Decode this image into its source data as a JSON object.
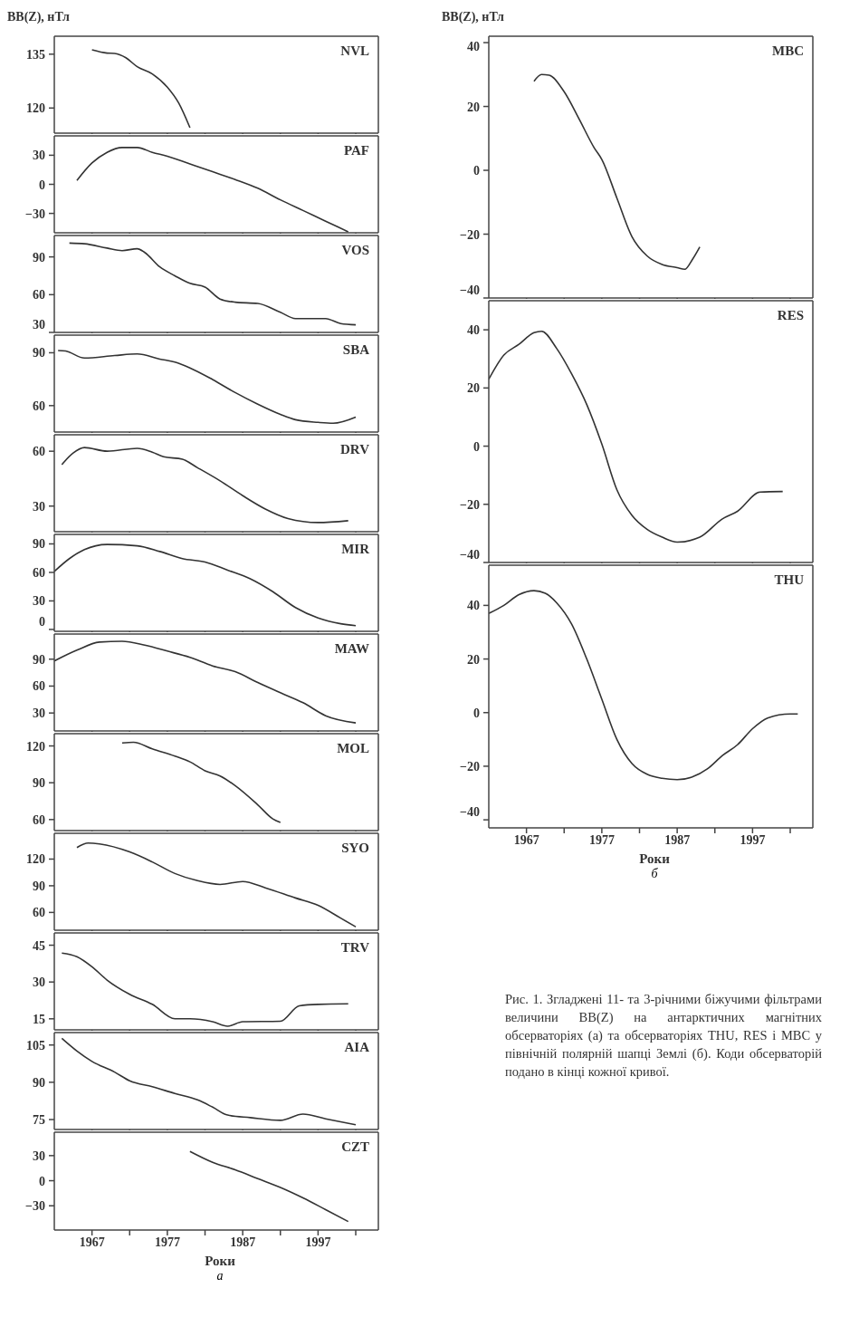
{
  "chart_data": [
    {
      "type": "line",
      "ylabel": "ВВ(Z), нТл",
      "xlim": [
        1962,
        2005
      ],
      "xticks": [
        {
          "value": 1967,
          "label": null
        },
        {
          "value": 1972,
          "label": null
        },
        {
          "value": 1977,
          "label": null
        },
        {
          "value": 1982,
          "label": null
        },
        {
          "value": 1987,
          "label": null
        },
        {
          "value": 1992,
          "label": null
        },
        {
          "value": 1997,
          "label": null
        },
        {
          "value": 2002,
          "label": null
        }
      ],
      "ylim": [
        113,
        140
      ],
      "yticks": [
        120,
        135
      ],
      "tick_labels": "y",
      "series": [
        {
          "name": "NVL",
          "color": "#333333",
          "x": [
            1967,
            1969,
            1970,
            1971.5,
            1973,
            1975,
            1977,
            1978.5,
            1980
          ],
          "values": [
            136.2,
            135.3,
            135.2,
            134,
            131.5,
            129.5,
            125.8,
            121.4,
            114.5
          ]
        }
      ]
    },
    {
      "type": "line",
      "xlim": [
        1962,
        2005
      ],
      "xticks": [
        {
          "value": 1967,
          "label": null
        },
        {
          "value": 1972,
          "label": null
        },
        {
          "value": 1977,
          "label": null
        },
        {
          "value": 1982,
          "label": null
        },
        {
          "value": 1987,
          "label": null
        },
        {
          "value": 1992,
          "label": null
        },
        {
          "value": 1997,
          "label": null
        },
        {
          "value": 2002,
          "label": null
        }
      ],
      "ylim": [
        -50,
        50
      ],
      "yticks": [
        -30,
        0,
        30
      ],
      "tick_labels": "y",
      "series": [
        {
          "name": "PAF",
          "color": "#333333",
          "x": [
            1965,
            1967,
            1969,
            1971,
            1973,
            1975,
            1977,
            1980,
            1983,
            1986,
            1989,
            1992,
            1995,
            1998,
            2001
          ],
          "values": [
            4,
            22,
            33,
            38,
            38,
            33,
            29,
            21,
            13,
            5,
            -4,
            -16,
            -27,
            -38,
            -49
          ]
        }
      ]
    },
    {
      "type": "line",
      "xlim": [
        1962,
        2005
      ],
      "xticks": [
        {
          "value": 1967,
          "label": null
        },
        {
          "value": 1972,
          "label": null
        },
        {
          "value": 1977,
          "label": null
        },
        {
          "value": 1982,
          "label": null
        },
        {
          "value": 1987,
          "label": null
        },
        {
          "value": 1992,
          "label": null
        },
        {
          "value": 1997,
          "label": null
        },
        {
          "value": 2002,
          "label": null
        }
      ],
      "ylim": [
        30,
        107
      ],
      "yticks": [
        30,
        60,
        90
      ],
      "tick_labels": "y",
      "series": [
        {
          "name": "VOS",
          "color": "#333333",
          "x": [
            1964,
            1966,
            1969,
            1971,
            1973,
            1974,
            1976,
            1978,
            1980,
            1982,
            1984,
            1986,
            1989,
            1992,
            1994,
            1998,
            2000,
            2002
          ],
          "values": [
            101,
            100.4,
            97,
            95,
            96.5,
            93.5,
            82,
            75,
            69,
            66,
            56.5,
            54,
            53,
            46,
            41,
            41,
            37,
            36
          ]
        }
      ]
    },
    {
      "type": "line",
      "xlim": [
        1962,
        2005
      ],
      "xticks": [
        {
          "value": 1967,
          "label": null
        },
        {
          "value": 1972,
          "label": null
        },
        {
          "value": 1977,
          "label": null
        },
        {
          "value": 1982,
          "label": null
        },
        {
          "value": 1987,
          "label": null
        },
        {
          "value": 1992,
          "label": null
        },
        {
          "value": 1997,
          "label": null
        },
        {
          "value": 2002,
          "label": null
        }
      ],
      "ylim": [
        45,
        100
      ],
      "yticks": [
        60,
        90
      ],
      "tick_labels": "y",
      "series": [
        {
          "name": "SBA",
          "color": "#333333",
          "x": [
            1962.5,
            1963.5,
            1966,
            1970,
            1973,
            1976,
            1978,
            1980,
            1983,
            1986,
            1989,
            1992,
            1994,
            1997,
            1999,
            2002
          ],
          "values": [
            91.3,
            91,
            87,
            88.4,
            89.3,
            86.4,
            84.7,
            81.4,
            74.8,
            67.4,
            60.8,
            55,
            52,
            50.5,
            50,
            53.5
          ]
        }
      ]
    },
    {
      "type": "line",
      "xlim": [
        1962,
        2005
      ],
      "xticks": [
        {
          "value": 1967,
          "label": null
        },
        {
          "value": 1972,
          "label": null
        },
        {
          "value": 1977,
          "label": null
        },
        {
          "value": 1982,
          "label": null
        },
        {
          "value": 1987,
          "label": null
        },
        {
          "value": 1992,
          "label": null
        },
        {
          "value": 1997,
          "label": null
        },
        {
          "value": 2002,
          "label": null
        }
      ],
      "ylim": [
        16,
        69
      ],
      "yticks": [
        30,
        60
      ],
      "tick_labels": "y",
      "series": [
        {
          "name": "DRV",
          "color": "#333333",
          "x": [
            1963,
            1964.5,
            1966,
            1969,
            1973,
            1975,
            1976.5,
            1979,
            1981,
            1984,
            1987,
            1990,
            1993,
            1997,
            2001
          ],
          "values": [
            52.7,
            59,
            62,
            60,
            61.6,
            59.5,
            57,
            55.6,
            51,
            43.8,
            35.7,
            28.4,
            23.2,
            21,
            22
          ]
        }
      ]
    },
    {
      "type": "line",
      "xlim": [
        1962,
        2005
      ],
      "xticks": [
        {
          "value": 1967,
          "label": null
        },
        {
          "value": 1972,
          "label": null
        },
        {
          "value": 1977,
          "label": null
        },
        {
          "value": 1982,
          "label": null
        },
        {
          "value": 1987,
          "label": null
        },
        {
          "value": 1992,
          "label": null
        },
        {
          "value": 1997,
          "label": null
        },
        {
          "value": 2002,
          "label": null
        }
      ],
      "ylim": [
        -2,
        100
      ],
      "yticks": [
        0,
        30,
        60,
        90
      ],
      "tick_labels": "y",
      "series": [
        {
          "name": "MIR",
          "color": "#333333",
          "x": [
            1962,
            1964,
            1966,
            1969,
            1973,
            1976,
            1979,
            1982,
            1985,
            1988,
            1991,
            1994,
            1997,
            2000,
            2002
          ],
          "values": [
            61,
            74.5,
            84,
            89.4,
            88,
            82,
            74.5,
            71,
            62.4,
            53.3,
            39.7,
            23,
            12,
            6,
            4
          ]
        }
      ]
    },
    {
      "type": "line",
      "xlim": [
        1962,
        2005
      ],
      "xticks": [
        {
          "value": 1967,
          "label": null
        },
        {
          "value": 1972,
          "label": null
        },
        {
          "value": 1977,
          "label": null
        },
        {
          "value": 1982,
          "label": null
        },
        {
          "value": 1987,
          "label": null
        },
        {
          "value": 1992,
          "label": null
        },
        {
          "value": 1997,
          "label": null
        },
        {
          "value": 2002,
          "label": null
        }
      ],
      "ylim": [
        10,
        118
      ],
      "yticks": [
        30,
        60,
        90
      ],
      "tick_labels": "y",
      "series": [
        {
          "name": "MAW",
          "color": "#333333",
          "x": [
            1962,
            1965,
            1968,
            1971,
            1974,
            1977,
            1980,
            1983,
            1986,
            1989,
            1992,
            1995,
            1998,
            2002
          ],
          "values": [
            88,
            100,
            109,
            110,
            105.6,
            99,
            92,
            82.5,
            76,
            64,
            52.6,
            41.5,
            27,
            19
          ]
        }
      ]
    },
    {
      "type": "line",
      "xlim": [
        1962,
        2005
      ],
      "xticks": [
        {
          "value": 1967,
          "label": null
        },
        {
          "value": 1972,
          "label": null
        },
        {
          "value": 1977,
          "label": null
        },
        {
          "value": 1982,
          "label": null
        },
        {
          "value": 1987,
          "label": null
        },
        {
          "value": 1992,
          "label": null
        },
        {
          "value": 1997,
          "label": null
        },
        {
          "value": 2002,
          "label": null
        }
      ],
      "ylim": [
        51,
        130
      ],
      "yticks": [
        60,
        90,
        120
      ],
      "tick_labels": "y",
      "series": [
        {
          "name": "MOL",
          "color": "#333333",
          "x": [
            1971,
            1972.5,
            1975,
            1978,
            1980,
            1982,
            1984,
            1986,
            1989,
            1991,
            1992
          ],
          "values": [
            122.4,
            123,
            117.6,
            111.7,
            107,
            99.8,
            95.5,
            87.6,
            72,
            60.5,
            57.6
          ]
        }
      ]
    },
    {
      "type": "line",
      "xlim": [
        1962,
        2005
      ],
      "xticks": [
        {
          "value": 1967,
          "label": null
        },
        {
          "value": 1972,
          "label": null
        },
        {
          "value": 1977,
          "label": null
        },
        {
          "value": 1982,
          "label": null
        },
        {
          "value": 1987,
          "label": null
        },
        {
          "value": 1992,
          "label": null
        },
        {
          "value": 1997,
          "label": null
        },
        {
          "value": 2002,
          "label": null
        }
      ],
      "ylim": [
        40,
        149
      ],
      "yticks": [
        60,
        90,
        120
      ],
      "tick_labels": "y",
      "series": [
        {
          "name": "SYO",
          "color": "#333333",
          "x": [
            1965,
            1966.5,
            1968,
            1972,
            1975,
            1978,
            1981,
            1984,
            1987,
            1990,
            1994,
            1997,
            2000,
            2002
          ],
          "values": [
            133,
            138,
            137,
            128,
            116.8,
            103.8,
            95.7,
            91.5,
            94.8,
            87.7,
            76.3,
            68,
            53.6,
            43.8
          ]
        }
      ]
    },
    {
      "type": "line",
      "xlim": [
        1962,
        2005
      ],
      "xticks": [
        {
          "value": 1967,
          "label": null
        },
        {
          "value": 1972,
          "label": null
        },
        {
          "value": 1977,
          "label": null
        },
        {
          "value": 1982,
          "label": null
        },
        {
          "value": 1987,
          "label": null
        },
        {
          "value": 1992,
          "label": null
        },
        {
          "value": 1997,
          "label": null
        },
        {
          "value": 2002,
          "label": null
        }
      ],
      "ylim": [
        10.5,
        50
      ],
      "yticks": [
        15,
        30,
        45
      ],
      "tick_labels": "y",
      "series": [
        {
          "name": "TRV",
          "color": "#333333",
          "x": [
            1963,
            1965,
            1967,
            1969,
            1972,
            1975,
            1978,
            1980,
            1983,
            1985,
            1987,
            1992,
            1994.5,
            1997,
            2001
          ],
          "values": [
            41.8,
            40.3,
            36.2,
            30.8,
            25,
            20.9,
            15,
            15,
            13.8,
            12,
            13.8,
            14,
            20.3,
            20.9,
            21.1
          ]
        }
      ]
    },
    {
      "type": "line",
      "xlim": [
        1962,
        2005
      ],
      "xticks": [
        {
          "value": 1967,
          "label": null
        },
        {
          "value": 1972,
          "label": null
        },
        {
          "value": 1977,
          "label": null
        },
        {
          "value": 1982,
          "label": null
        },
        {
          "value": 1987,
          "label": null
        },
        {
          "value": 1992,
          "label": null
        },
        {
          "value": 1997,
          "label": null
        },
        {
          "value": 2002,
          "label": null
        }
      ],
      "ylim": [
        71,
        110
      ],
      "yticks": [
        75,
        90,
        105
      ],
      "tick_labels": "y",
      "series": [
        {
          "name": "AIA",
          "color": "#333333",
          "x": [
            1963,
            1965,
            1967,
            1970,
            1972,
            1975,
            1978,
            1981,
            1983,
            1985,
            1988,
            1992,
            1995,
            1998,
            2002
          ],
          "values": [
            107.7,
            102.6,
            98.4,
            94.1,
            90.6,
            88.2,
            85.5,
            82.9,
            80,
            76.8,
            75.8,
            74.7,
            77.2,
            75.3,
            72.9
          ]
        }
      ]
    },
    {
      "type": "line",
      "xlabel": "Роки",
      "annotations": [
        "а"
      ],
      "xlim": [
        1962,
        2005
      ],
      "xticks": [
        1967,
        {
          "value": 1972,
          "label": null
        },
        1977,
        {
          "value": 1982,
          "label": null
        },
        1987,
        {
          "value": 1992,
          "label": null
        },
        1997,
        {
          "value": 2002,
          "label": null
        }
      ],
      "ylim": [
        -59,
        58
      ],
      "yticks": [
        -30,
        0,
        30
      ],
      "series": [
        {
          "name": "CZT",
          "color": "#333333",
          "x": [
            1980,
            1983,
            1986,
            1989,
            1992,
            1995,
            1998,
            2001
          ],
          "values": [
            35,
            22,
            13,
            2.5,
            -8,
            -20.5,
            -34.6,
            -48.8
          ]
        }
      ]
    },
    {
      "type": "line",
      "ylabel": "ВВ(Z), нТл",
      "xlim": [
        1962,
        2005
      ],
      "xticks": [
        {
          "value": 1967,
          "label": null
        },
        {
          "value": 1972,
          "label": null
        },
        {
          "value": 1977,
          "label": null
        },
        {
          "value": 1982,
          "label": null
        },
        {
          "value": 1987,
          "label": null
        },
        {
          "value": 1992,
          "label": null
        },
        {
          "value": 1997,
          "label": null
        },
        {
          "value": 2002,
          "label": null
        }
      ],
      "ylim": [
        -40,
        42
      ],
      "yticks": [
        -40,
        -20,
        0,
        20,
        40
      ],
      "tick_labels": "y",
      "series": [
        {
          "name": "MBC",
          "color": "#333333",
          "x": [
            1968,
            1969,
            1970,
            1972,
            1974,
            1976,
            1977,
            1979,
            1981,
            1983,
            1985,
            1987,
            1988,
            1989,
            1990
          ],
          "values": [
            27.9,
            30,
            29.8,
            24.6,
            16,
            7,
            3.4,
            -8.7,
            -20.8,
            -26.8,
            -29.5,
            -30.5,
            -31,
            -28,
            -24
          ]
        }
      ]
    },
    {
      "type": "line",
      "xlim": [
        1962,
        2005
      ],
      "xticks": [
        {
          "value": 1967,
          "label": null
        },
        {
          "value": 1972,
          "label": null
        },
        {
          "value": 1977,
          "label": null
        },
        {
          "value": 1982,
          "label": null
        },
        {
          "value": 1987,
          "label": null
        },
        {
          "value": 1992,
          "label": null
        },
        {
          "value": 1997,
          "label": null
        },
        {
          "value": 2002,
          "label": null
        }
      ],
      "ylim": [
        -40,
        50
      ],
      "yticks": [
        -40,
        -20,
        0,
        20,
        40
      ],
      "tick_labels": "y",
      "series": [
        {
          "name": "RES",
          "color": "#333333",
          "x": [
            1962,
            1964,
            1966,
            1968,
            1969,
            1971,
            1973,
            1975,
            1977,
            1979,
            1981,
            1983,
            1985,
            1987,
            1990,
            1993,
            1995,
            1998,
            2001
          ],
          "values": [
            23,
            31.3,
            35,
            39,
            39.5,
            33.6,
            24.8,
            14.3,
            0.7,
            -15,
            -23.8,
            -28.6,
            -31.3,
            -33,
            -31.3,
            -25,
            -22.4,
            -15.8,
            -15.6
          ]
        }
      ]
    },
    {
      "type": "line",
      "xlabel": "Роки",
      "annotations": [
        "б",
        "Рис. 1. Згладжені 11- та 3-річними біжучими фільтрами величини ВВ(Z) на антарктичних магнітних обсерваторіях (а) та обсерваторіях THU, RES і MBC у північній полярній шапці Землі (б). Коди обсерваторій подано в кінці кожної кривої."
      ],
      "xlim": [
        1962,
        2005
      ],
      "xticks": [
        1967,
        {
          "value": 1972,
          "label": null
        },
        1977,
        {
          "value": 1982,
          "label": null
        },
        1987,
        {
          "value": 1992,
          "label": null
        },
        1997,
        {
          "value": 2002,
          "label": null
        }
      ],
      "ylim": [
        -43,
        55
      ],
      "yticks": [
        -40,
        -20,
        0,
        20,
        40
      ],
      "series": [
        {
          "name": "THU",
          "color": "#333333",
          "x": [
            1962,
            1964,
            1966,
            1968,
            1969.5,
            1971,
            1973,
            1975,
            1977,
            1979,
            1981,
            1983,
            1985,
            1987,
            1989,
            1991,
            1993,
            1995,
            1997,
            1999,
            2002,
            2003
          ],
          "values": [
            37,
            40,
            44,
            45.5,
            44.5,
            41,
            33,
            20,
            5,
            -10,
            -19,
            -23,
            -24.5,
            -25,
            -24,
            -21,
            -16,
            -12,
            -6,
            -2,
            -0.5,
            -0.5
          ]
        }
      ]
    }
  ]
}
